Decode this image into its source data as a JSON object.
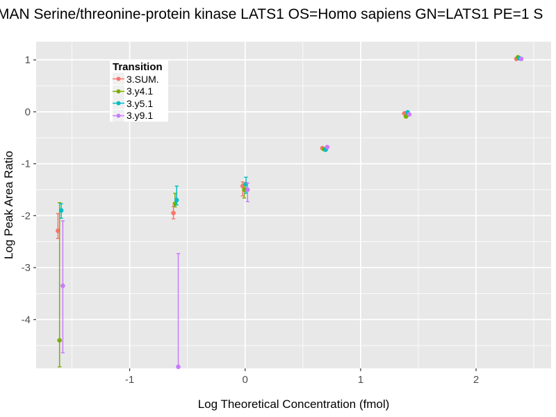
{
  "title": "MAN Serine/threonine-protein kinase LATS1 OS=Homo sapiens GN=LATS1 PE=1 S",
  "colors": {
    "panel_bg": "#E8E8E8",
    "grid": "#FFFFFF",
    "tick_mark": "#333333",
    "tick_label": "#4D4D4D",
    "text": "#000000",
    "legend_bg": "#FFFFFF",
    "legend_key_bg": "#F0F0F0"
  },
  "legend": {
    "title": "Transition",
    "entries": [
      {
        "label": "3.SUM.",
        "color": "#F8766D"
      },
      {
        "label": "3.y4.1",
        "color": "#7CAE00"
      },
      {
        "label": "3.y5.1",
        "color": "#00BFC4"
      },
      {
        "label": "3.y9.1",
        "color": "#C77CFF"
      }
    ]
  },
  "chart_data": {
    "type": "scatter",
    "title": "MAN Serine/threonine-protein kinase LATS1 OS=Homo sapiens GN=LATS1 PE=1 S",
    "xlabel": "Log Theoretical Concentration (fmol)",
    "ylabel": "Log Peak Area Ratio",
    "xlim": [
      -1.81,
      2.65
    ],
    "ylim": [
      -4.94,
      1.35
    ],
    "grid": true,
    "legend_title": "Transition",
    "legend_position": "top-left-inside",
    "x_ticks": [
      {
        "v": -1,
        "label": "-1"
      },
      {
        "v": 0,
        "label": "0"
      },
      {
        "v": 1,
        "label": "1"
      },
      {
        "v": 2,
        "label": "2"
      }
    ],
    "y_ticks": [
      {
        "v": 1,
        "label": "1"
      },
      {
        "v": 0,
        "label": "0"
      },
      {
        "v": -1,
        "label": "-1"
      },
      {
        "v": -2,
        "label": "-2"
      },
      {
        "v": -3,
        "label": "-3"
      },
      {
        "v": -4,
        "label": "-4"
      }
    ],
    "x_minor_ticks": [
      -1.5,
      -0.5,
      0.5,
      1.5,
      2.5
    ],
    "y_minor_ticks": [
      0.5,
      -0.5,
      -1.5,
      -2.5,
      -3.5,
      -4.5
    ],
    "series": [
      {
        "name": "3.SUM.",
        "color": "#F8766D",
        "points": [
          {
            "x": -1.6,
            "y": -2.29,
            "lo": -2.44,
            "hi": -1.96
          },
          {
            "x": -0.6,
            "y": -1.95,
            "lo": -2.06,
            "hi": -1.82
          },
          {
            "x": 0.0,
            "y": -1.43,
            "lo": -1.62,
            "hi": -1.35
          },
          {
            "x": 0.69,
            "y": -0.7
          },
          {
            "x": 1.4,
            "y": -0.03
          },
          {
            "x": 2.37,
            "y": 1.02
          }
        ]
      },
      {
        "name": "3.y4.1",
        "color": "#7CAE00",
        "points": [
          {
            "x": -1.6,
            "y": -4.4,
            "lo": -4.91,
            "hi": -1.75
          },
          {
            "x": -0.6,
            "y": -1.77,
            "lo": -1.83,
            "hi": -1.57
          },
          {
            "x": 0.0,
            "y": -1.5,
            "lo": -1.66,
            "hi": -1.39
          },
          {
            "x": 0.69,
            "y": -0.72
          },
          {
            "x": 1.4,
            "y": -0.09
          },
          {
            "x": 2.37,
            "y": 1.05
          }
        ]
      },
      {
        "name": "3.y5.1",
        "color": "#00BFC4",
        "points": [
          {
            "x": -1.6,
            "y": -1.9,
            "lo": -2.05,
            "hi": -1.77
          },
          {
            "x": -0.6,
            "y": -1.7,
            "lo": -1.79,
            "hi": -1.43
          },
          {
            "x": 0.0,
            "y": -1.39,
            "lo": -1.57,
            "hi": -1.26
          },
          {
            "x": 0.69,
            "y": -0.73
          },
          {
            "x": 1.4,
            "y": -0.01
          },
          {
            "x": 2.37,
            "y": 1.03
          }
        ]
      },
      {
        "name": "3.y9.1",
        "color": "#C77CFF",
        "points": [
          {
            "x": -1.6,
            "y": -3.35,
            "lo": -4.64,
            "hi": -2.1
          },
          {
            "x": -0.6,
            "y": -4.91,
            "lo": -4.92,
            "hi": -2.73
          },
          {
            "x": 0.0,
            "y": -1.5,
            "lo": -1.73,
            "hi": -1.37
          },
          {
            "x": 0.69,
            "y": -0.68
          },
          {
            "x": 1.4,
            "y": -0.05
          },
          {
            "x": 2.37,
            "y": 1.02
          }
        ]
      }
    ]
  }
}
